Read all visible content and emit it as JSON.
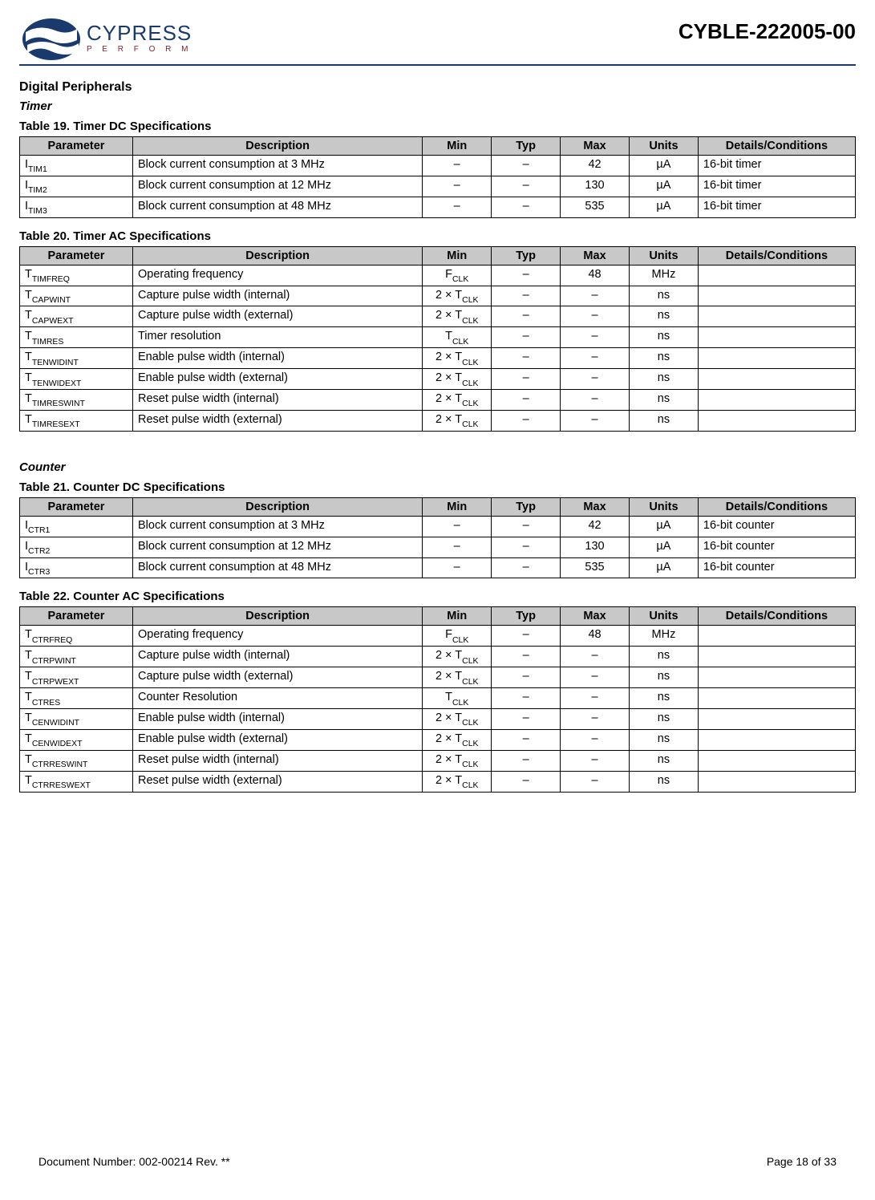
{
  "header": {
    "logo_main": "CYPRESS",
    "logo_sub": "P E R F O R M",
    "part_number": "CYBLE-222005-00"
  },
  "section_title": "Digital Peripherals",
  "timer": {
    "subhead": "Timer",
    "dc_caption": "Table 19.  Timer DC Specifications",
    "ac_caption": "Table 20.  Timer AC Specifications"
  },
  "counter": {
    "subhead": "Counter",
    "dc_caption": "Table 21.  Counter DC Specifications",
    "ac_caption": "Table 22.  Counter AC Specifications"
  },
  "columns": {
    "parameter": "Parameter",
    "description": "Description",
    "min": "Min",
    "typ": "Typ",
    "max": "Max",
    "units": "Units",
    "details": "Details/Conditions"
  },
  "timer_dc_rows": [
    {
      "param_main": "I",
      "param_sub": "TIM1",
      "desc": "Block current consumption at 3 MHz",
      "min": "–",
      "typ": "–",
      "max": "42",
      "units": "µA",
      "details": "16-bit timer"
    },
    {
      "param_main": "I",
      "param_sub": "TIM2",
      "desc": "Block current consumption at 12 MHz",
      "min": "–",
      "typ": "–",
      "max": "130",
      "units": "µA",
      "details": "16-bit timer"
    },
    {
      "param_main": "I",
      "param_sub": "TIM3",
      "desc": "Block current consumption at 48 MHz",
      "min": "–",
      "typ": "–",
      "max": "535",
      "units": "µA",
      "details": "16-bit timer"
    }
  ],
  "timer_ac_rows": [
    {
      "param_main": "T",
      "param_sub": "TIMFREQ",
      "desc": "Operating frequency",
      "min_main": "F",
      "min_sub": "CLK",
      "typ": "–",
      "max": "48",
      "units": "MHz",
      "details": ""
    },
    {
      "param_main": "T",
      "param_sub": "CAPWINT",
      "desc": "Capture pulse width (internal)",
      "min_pre": "2 × T",
      "min_sub": "CLK",
      "typ": "–",
      "max": "–",
      "units": "ns",
      "details": ""
    },
    {
      "param_main": "T",
      "param_sub": "CAPWEXT",
      "desc": "Capture pulse width (external)",
      "min_pre": "2 × T",
      "min_sub": "CLK",
      "typ": "–",
      "max": "–",
      "units": "ns",
      "details": ""
    },
    {
      "param_main": "T",
      "param_sub": "TIMRES",
      "desc": "Timer resolution",
      "min_main": "T",
      "min_sub": "CLK",
      "typ": "–",
      "max": "–",
      "units": "ns",
      "details": ""
    },
    {
      "param_main": "T",
      "param_sub": "TENWIDINT",
      "desc": "Enable pulse width (internal)",
      "min_pre": "2 × T",
      "min_sub": "CLK",
      "typ": "–",
      "max": "–",
      "units": "ns",
      "details": ""
    },
    {
      "param_main": "T",
      "param_sub": "TENWIDEXT",
      "desc": "Enable pulse width (external)",
      "min_pre": "2 × T",
      "min_sub": "CLK",
      "typ": "–",
      "max": "–",
      "units": "ns",
      "details": ""
    },
    {
      "param_main": "T",
      "param_sub": "TIMRESWINT",
      "desc": "Reset pulse width (internal)",
      "min_pre": "2 × T",
      "min_sub": "CLK",
      "typ": "–",
      "max": "–",
      "units": "ns",
      "details": ""
    },
    {
      "param_main": "T",
      "param_sub": "TIMRESEXT",
      "desc": "Reset pulse width (external)",
      "min_pre": "2 × T",
      "min_sub": "CLK",
      "typ": "–",
      "max": "–",
      "units": "ns",
      "details": ""
    }
  ],
  "counter_dc_rows": [
    {
      "param_main": "I",
      "param_sub": "CTR1",
      "desc": "Block current consumption at 3 MHz",
      "min": "–",
      "typ": "–",
      "max": "42",
      "units": "µA",
      "details": "16-bit counter"
    },
    {
      "param_main": "I",
      "param_sub": "CTR2",
      "desc": "Block current consumption at 12 MHz",
      "min": "–",
      "typ": "–",
      "max": "130",
      "units": "µA",
      "details": "16-bit counter"
    },
    {
      "param_main": "I",
      "param_sub": "CTR3",
      "desc": "Block current consumption at 48 MHz",
      "min": "–",
      "typ": "–",
      "max": "535",
      "units": "µA",
      "details": "16-bit counter"
    }
  ],
  "counter_ac_rows": [
    {
      "param_main": "T",
      "param_sub": "CTRFREQ",
      "desc": "Operating frequency",
      "min_main": "F",
      "min_sub": "CLK",
      "typ": "–",
      "max": "48",
      "units": "MHz",
      "details": ""
    },
    {
      "param_main": "T",
      "param_sub": "CTRPWINT",
      "desc": "Capture pulse width (internal)",
      "min_pre": "2 × T",
      "min_sub": "CLK",
      "typ": "–",
      "max": "–",
      "units": "ns",
      "details": ""
    },
    {
      "param_main": "T",
      "param_sub": "CTRPWEXT",
      "desc": "Capture pulse width (external)",
      "min_pre": "2 × T",
      "min_sub": "CLK",
      "typ": "–",
      "max": "–",
      "units": "ns",
      "details": ""
    },
    {
      "param_main": "T",
      "param_sub": "CTRES",
      "desc": "Counter Resolution",
      "min_main": "T",
      "min_sub": "CLK",
      "typ": "–",
      "max": "–",
      "units": "ns",
      "details": ""
    },
    {
      "param_main": "T",
      "param_sub": "CENWIDINT",
      "desc": "Enable pulse width (internal)",
      "min_pre": "2 × T",
      "min_sub": "CLK",
      "typ": "–",
      "max": "–",
      "units": "ns",
      "details": ""
    },
    {
      "param_main": "T",
      "param_sub": "CENWIDEXT",
      "desc": "Enable pulse width (external)",
      "min_pre": "2 × T",
      "min_sub": "CLK",
      "typ": "–",
      "max": "–",
      "units": "ns",
      "details": ""
    },
    {
      "param_main": "T",
      "param_sub": "CTRRESWINT",
      "desc": "Reset pulse width (internal)",
      "min_pre": "2 × T",
      "min_sub": "CLK",
      "typ": "–",
      "max": "–",
      "units": "ns",
      "details": ""
    },
    {
      "param_main": "T",
      "param_sub": "CTRRESWEXT",
      "desc": "Reset pulse width (external)",
      "min_pre": "2 × T",
      "min_sub": "CLK",
      "typ": "–",
      "max": "–",
      "units": "ns",
      "details": ""
    }
  ],
  "footer": {
    "doc": "Document Number: 002-00214 Rev. **",
    "page": "Page 18 of 33"
  }
}
